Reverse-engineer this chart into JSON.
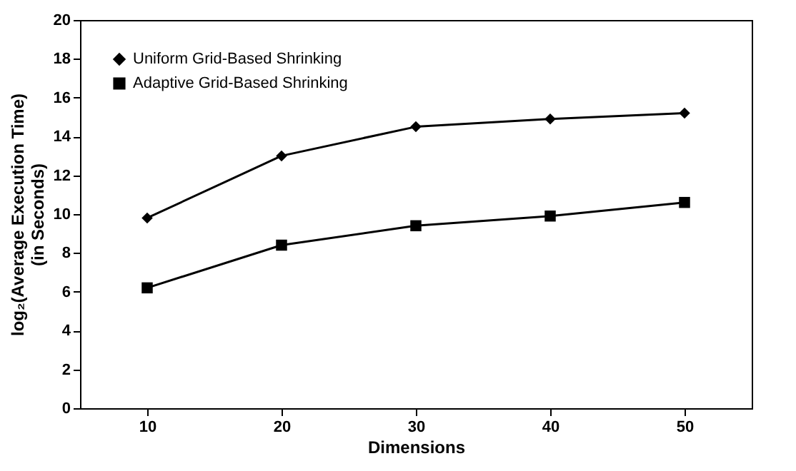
{
  "chart_data": {
    "type": "line",
    "xlabel": "Dimensions",
    "ylabel": "log₂(Average Execution Time)\n(in Seconds)",
    "categories": [
      "10",
      "20",
      "30",
      "40",
      "50"
    ],
    "series": [
      {
        "name": "Uniform Grid-Based Shrinking",
        "color": "#000000",
        "marker": "diamond",
        "values": [
          9.8,
          13.0,
          14.5,
          14.9,
          15.2
        ]
      },
      {
        "name": "Adaptive Grid-Based Shrinking",
        "color": "#000000",
        "marker": "square",
        "values": [
          6.2,
          8.4,
          9.4,
          9.9,
          10.6
        ]
      }
    ],
    "ylim": [
      0,
      20
    ],
    "yticks": [
      0,
      2,
      4,
      6,
      8,
      10,
      12,
      14,
      16,
      18,
      20
    ],
    "grid": false,
    "legend": "top left",
    "line_style": "solid"
  }
}
